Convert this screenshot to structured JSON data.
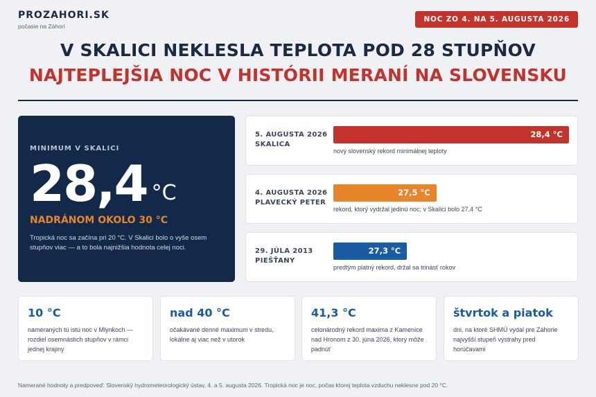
{
  "brand": {
    "name": "PROZAHORI.SK",
    "tagline": "počasie na Záhorí"
  },
  "date_badge": "NOC ZO 4. NA 5. AUGUSTA 2026",
  "headline": {
    "line1": "V SKALICI NEKLESLA TEPLOTA POD 28 STUPŇOV",
    "line2": "NAJTEPLEJŠIA NOC V HISTÓRII MERANÍ NA SLOVENSKU"
  },
  "colors": {
    "navy": "#13294a",
    "red": "#c4322c",
    "orange": "#e8842a",
    "blue": "#1a5ba6",
    "background": "#f0f1f4"
  },
  "hero": {
    "label": "MINIMUM V SKALICI",
    "value": "28,4",
    "unit": "°C",
    "accent": "NADRÁNOM OKOLO 30 °C",
    "note": "Tropická noc sa začína pri 20 °C. V Skalici bolo o vyše osem stupňov viac — a to bola najnižšia hodnota celej noci."
  },
  "records": [
    {
      "date": "5. AUGUSTA 2026",
      "place": "SKALICA",
      "value": 28.4,
      "value_label": "28,4 °C",
      "color": "#c4322c",
      "description": "nový slovenský rekord minimálnej teploty"
    },
    {
      "date": "4. AUGUSTA 2026",
      "place": "PLAVECKÝ PETER",
      "value": 27.5,
      "value_label": "27,5 °C",
      "color": "#e8842a",
      "description": "rekord, ktorý vydržal jedinú noc; v Skalici bolo 27,4 °C"
    },
    {
      "date": "29. JÚLA 2013",
      "place": "PIEŠŤANY",
      "value": 27.3,
      "value_label": "27,3 °C",
      "color": "#1a5ba6",
      "description": "predtým platný rekord, držal sa trinásť rokov"
    }
  ],
  "stats": [
    {
      "value": "10 °C",
      "description": "nameraných tú istú noc v Mlynkoch — rozdiel osemnástich stupňov v rámci jednej krajiny"
    },
    {
      "value": "nad 40 °C",
      "description": "očakávané denné maximum v stredu, lokálne aj viac než v utorok"
    },
    {
      "value": "41,3 °C",
      "description": "celonárodný rekord maxima z Kamenice nad Hronom z 30. júna 2026, ktorý môže padnúť"
    },
    {
      "value": "štvrtok a piatok",
      "description": "dni, na ktoré SHMÚ vydal pre Záhorie najvyšší stupeň výstrahy pred horúčavami"
    }
  ],
  "footer": "Namerané hodnoty a predpoveď: Slovenský hydrometeorologický ústav, 4. a 5. augusta 2026. Tropická noc je noc, počas ktorej teplota vzduchu neklesne pod 20 °C."
}
